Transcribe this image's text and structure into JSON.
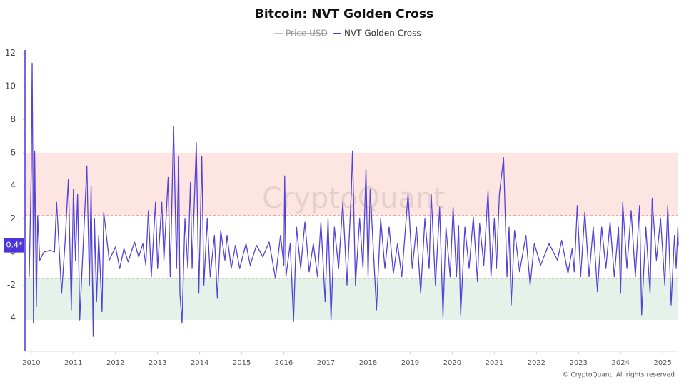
{
  "chart_data": {
    "type": "line",
    "title": "Bitcoin: NVT Golden Cross",
    "watermark": "CryptoQuant",
    "footer": "© CryptoQuant. All rights reserved",
    "hidden_series": [
      {
        "name": "Price USD",
        "color": "#aaaaaa"
      }
    ],
    "x": [
      2009.95,
      2010.0,
      2010.02,
      2010.04,
      2010.05,
      2010.08,
      2010.12,
      2010.15,
      2010.2,
      2010.3,
      2010.45,
      2010.55,
      2010.6,
      2010.72,
      2010.8,
      2010.88,
      2010.95,
      2011.0,
      2011.05,
      2011.1,
      2011.15,
      2011.32,
      2011.38,
      2011.42,
      2011.47,
      2011.5,
      2011.55,
      2011.6,
      2011.68,
      2011.72,
      2011.85,
      2012.0,
      2012.1,
      2012.2,
      2012.3,
      2012.45,
      2012.55,
      2012.65,
      2012.72,
      2012.78,
      2012.85,
      2012.95,
      2013.0,
      2013.1,
      2013.15,
      2013.25,
      2013.3,
      2013.38,
      2013.45,
      2013.5,
      2013.53,
      2013.58,
      2013.65,
      2013.72,
      2013.78,
      2013.82,
      2013.92,
      2013.98,
      2014.05,
      2014.1,
      2014.18,
      2014.25,
      2014.35,
      2014.42,
      2014.5,
      2014.6,
      2014.65,
      2014.75,
      2014.85,
      2014.95,
      2015.1,
      2015.2,
      2015.35,
      2015.5,
      2015.65,
      2015.8,
      2015.92,
      2016.0,
      2016.02,
      2016.05,
      2016.15,
      2016.23,
      2016.3,
      2016.4,
      2016.5,
      2016.6,
      2016.7,
      2016.8,
      2016.88,
      2016.98,
      2017.05,
      2017.12,
      2017.2,
      2017.3,
      2017.4,
      2017.5,
      2017.6,
      2017.63,
      2017.7,
      2017.8,
      2017.88,
      2017.95,
      2018.0,
      2018.05,
      2018.2,
      2018.3,
      2018.4,
      2018.5,
      2018.6,
      2018.7,
      2018.8,
      2018.95,
      2019.05,
      2019.15,
      2019.25,
      2019.35,
      2019.45,
      2019.5,
      2019.6,
      2019.7,
      2019.78,
      2019.85,
      2019.95,
      2020.02,
      2020.1,
      2020.15,
      2020.2,
      2020.3,
      2020.4,
      2020.5,
      2020.6,
      2020.65,
      2020.75,
      2020.85,
      2020.92,
      2021.0,
      2021.05,
      2021.12,
      2021.22,
      2021.3,
      2021.35,
      2021.4,
      2021.48,
      2021.6,
      2021.75,
      2021.85,
      2021.95,
      2022.1,
      2022.3,
      2022.5,
      2022.6,
      2022.75,
      2022.85,
      2022.9,
      2022.97,
      2023.05,
      2023.15,
      2023.25,
      2023.35,
      2023.45,
      2023.55,
      2023.65,
      2023.75,
      2023.85,
      2023.95,
      2024.0,
      2024.05,
      2024.15,
      2024.25,
      2024.35,
      2024.45,
      2024.5,
      2024.6,
      2024.7,
      2024.75,
      2024.85,
      2024.95,
      2025.05,
      2025.12,
      2025.2,
      2025.28,
      2025.32,
      2025.36,
      2025.37
    ],
    "series": [
      {
        "name": "NVT Golden Cross",
        "color": "#5443d6",
        "values": [
          -1.5,
          5,
          11.4,
          4,
          -4.3,
          6.1,
          -3.3,
          2.2,
          -0.5,
          0,
          0.1,
          0,
          3,
          -2.5,
          0.5,
          4.4,
          -3.5,
          3.8,
          -0.5,
          3.5,
          -4.1,
          5.2,
          -2,
          4,
          -5.1,
          2,
          -3,
          1,
          -3.6,
          2.4,
          -0.5,
          0.3,
          -1,
          0.2,
          -0.6,
          0.6,
          -0.3,
          0.5,
          -0.8,
          2.5,
          -1.5,
          3,
          -1,
          3,
          -0.5,
          4.5,
          -1.5,
          7.6,
          -1,
          5.8,
          -2.5,
          -4.3,
          2,
          -1,
          4.2,
          -1,
          6.6,
          -2.5,
          5.8,
          -2,
          2,
          -1.5,
          1,
          -2.8,
          1.3,
          -0.5,
          1,
          -1,
          0.4,
          -1,
          0.5,
          -0.8,
          0.4,
          -0.3,
          0.6,
          -1.6,
          1,
          -0.8,
          4.6,
          -1.5,
          0.5,
          -4.2,
          1.5,
          -1,
          1.8,
          -1.2,
          0.5,
          -1.5,
          1.8,
          -3,
          2,
          -4.1,
          1.5,
          -1,
          3,
          -2,
          3.5,
          6.1,
          -2,
          2,
          -1,
          5,
          -1.5,
          3.8,
          -3.5,
          2,
          -1,
          1.5,
          -1.3,
          0.5,
          -1.5,
          3.5,
          -1,
          1.5,
          -2.5,
          2,
          -1,
          3.5,
          -2,
          2.7,
          -3.9,
          1.5,
          -1.5,
          2.7,
          -1.5,
          1.6,
          -3.8,
          1.5,
          -1,
          2.1,
          -1.8,
          1.7,
          -0.8,
          3.7,
          -1.5,
          2,
          -1,
          3.5,
          5.7,
          -1.5,
          1.5,
          -3.2,
          1.3,
          -1.2,
          1,
          -2,
          0.5,
          -0.8,
          0.5,
          -0.5,
          0.7,
          -1.3,
          0.2,
          -1.2,
          2.8,
          -1.5,
          2.4,
          -1.5,
          1.5,
          -2.4,
          1.5,
          -1,
          1.8,
          -1.5,
          1.5,
          -2.5,
          3,
          -1,
          2.5,
          -1.5,
          2.8,
          -3.8,
          1.5,
          -2.5,
          3.2,
          -0.5,
          2,
          -2,
          2.8,
          -3.2,
          1,
          -1,
          1.5,
          0.4
        ]
      }
    ],
    "last_value_label": "0.4*",
    "bands": [
      {
        "from": 2.2,
        "to": 6,
        "color": "#fde6e2",
        "line_color": "#e0806f"
      },
      {
        "from": -4.1,
        "to": -1.6,
        "color": "#e4f2ea",
        "line_color": "#a9b86a"
      }
    ],
    "xlim": [
      2009.85,
      2025.37
    ],
    "xticks": [
      2010,
      2011,
      2012,
      2013,
      2014,
      2015,
      2016,
      2017,
      2018,
      2019,
      2020,
      2021,
      2022,
      2023,
      2024,
      2025
    ],
    "ylim": [
      -6,
      12.2
    ],
    "yticks": [
      -4,
      -2,
      0,
      2,
      4,
      6,
      8,
      10,
      12
    ],
    "grid": false
  }
}
